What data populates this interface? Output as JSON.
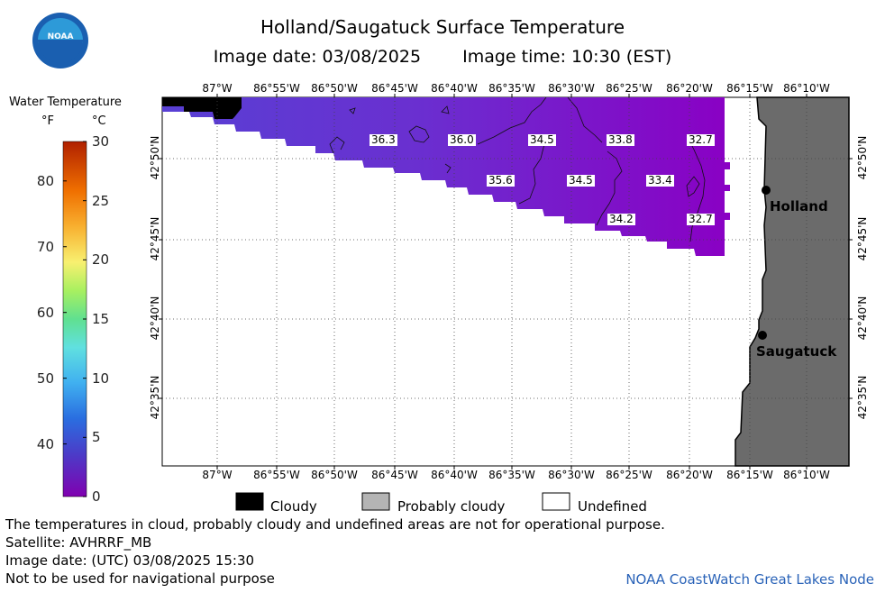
{
  "title": "Holland/Saugatuck Surface Temperature",
  "image_date_label": "Image date: 03/08/2025",
  "image_time_label": "Image time: 10:30 (EST)",
  "logo_text": "NOAA",
  "colorbar": {
    "title": "Water Temperature",
    "unit_f": "°F",
    "unit_c": "°C",
    "f_ticks": [
      "40",
      "50",
      "60",
      "70",
      "80"
    ],
    "c_ticks": [
      "0",
      "5",
      "10",
      "15",
      "20",
      "25",
      "30"
    ]
  },
  "longitude_ticks": [
    "87°W",
    "86°55'W",
    "86°50'W",
    "86°45'W",
    "86°40'W",
    "86°35'W",
    "86°30'W",
    "86°25'W",
    "86°20'W",
    "86°15'W",
    "86°10'W"
  ],
  "latitude_ticks": [
    "42°50'N",
    "42°45'N",
    "42°40'N",
    "42°35'N"
  ],
  "temperature_labels": [
    "36.3",
    "36.0",
    "34.5",
    "33.8",
    "32.7",
    "35.6",
    "34.5",
    "33.4",
    "34.2",
    "32.7"
  ],
  "places": [
    "Holland",
    "Saugatuck"
  ],
  "legend": {
    "cloudy": "Cloudy",
    "probably_cloudy": "Probably cloudy",
    "undefined": "Undefined"
  },
  "notes": {
    "line1": "The temperatures in cloud, probably cloudy and undefined areas are not for operational purpose.",
    "line2": "Satellite: AVHRRF_MB",
    "line3": "Image date: (UTC) 03/08/2025  15:30",
    "line4": "Not to be used for navigational purpose"
  },
  "footer": "NOAA CoastWatch Great Lakes Node",
  "colors": {
    "land": "#6b6b6b",
    "cloudy": "#000000",
    "probably_cloudy": "#b4b4b4",
    "water_warm": "#6a2fd0",
    "water_cold": "#8a00c0"
  }
}
